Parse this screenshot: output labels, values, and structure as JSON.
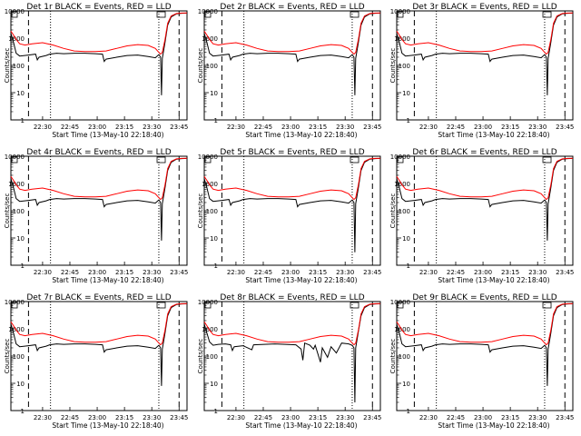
{
  "chart_data": [
    {
      "type": "line",
      "title": "Det 1r BLACK = Events, RED = LLD",
      "xlabel": "Start Time (13-May-10 22:18:40)",
      "ylabel": "Counts/sec",
      "yscale": "log",
      "ylim": [
        1,
        10000
      ],
      "y_ticks": [
        "1",
        "10",
        "100",
        "1000",
        "10000"
      ],
      "x_ticks": [
        "22:30",
        "22:45",
        "23:00",
        "23:15",
        "23:30",
        "23:45"
      ],
      "variant": "a",
      "series": [
        {
          "name": "BLACK",
          "color": "#000000"
        },
        {
          "name": "RED",
          "color": "#ff0000"
        }
      ]
    },
    {
      "type": "line",
      "title": "Det 2r BLACK = Events, RED = LLD",
      "xlabel": "Start Time (13-May-10 22:18:40)",
      "ylabel": "Counts/sec",
      "yscale": "log",
      "ylim": [
        1,
        10000
      ],
      "y_ticks": [
        "1",
        "10",
        "100",
        "1000",
        "10000"
      ],
      "x_ticks": [
        "22:30",
        "22:45",
        "23:00",
        "23:15",
        "23:30",
        "23:45"
      ],
      "variant": "a",
      "series": [
        {
          "name": "BLACK",
          "color": "#000000"
        },
        {
          "name": "RED",
          "color": "#ff0000"
        }
      ]
    },
    {
      "type": "line",
      "title": "Det 3r BLACK = Events, RED = LLD",
      "xlabel": "Start Time (13-May-10 22:18:40)",
      "ylabel": "Counts/sec",
      "yscale": "log",
      "ylim": [
        1,
        10000
      ],
      "y_ticks": [
        "1",
        "10",
        "100",
        "1000",
        "10000"
      ],
      "x_ticks": [
        "22:30",
        "22:45",
        "23:00",
        "23:15",
        "23:30",
        "23:45"
      ],
      "variant": "b",
      "series": [
        {
          "name": "BLACK",
          "color": "#000000"
        },
        {
          "name": "RED",
          "color": "#ff0000"
        }
      ]
    },
    {
      "type": "line",
      "title": "Det 4r BLACK = Events, RED = LLD",
      "xlabel": "Start Time (13-May-10 22:18:40)",
      "ylabel": "Counts/sec",
      "yscale": "log",
      "ylim": [
        1,
        10000
      ],
      "y_ticks": [
        "1",
        "10",
        "100",
        "1000",
        "10000"
      ],
      "x_ticks": [
        "22:30",
        "22:45",
        "23:00",
        "23:15",
        "23:30",
        "23:45"
      ],
      "variant": "a",
      "series": [
        {
          "name": "BLACK",
          "color": "#000000"
        },
        {
          "name": "RED",
          "color": "#ff0000"
        }
      ]
    },
    {
      "type": "line",
      "title": "Det 5r BLACK = Events, RED = LLD",
      "xlabel": "Start Time (13-May-10 22:18:40)",
      "ylabel": "Counts/sec",
      "yscale": "log",
      "ylim": [
        1,
        10000
      ],
      "y_ticks": [
        "1",
        "10",
        "100",
        "1000",
        "10000"
      ],
      "x_ticks": [
        "22:30",
        "22:45",
        "23:00",
        "23:15",
        "23:30",
        "23:45"
      ],
      "variant": "c",
      "series": [
        {
          "name": "BLACK",
          "color": "#000000"
        },
        {
          "name": "RED",
          "color": "#ff0000"
        }
      ]
    },
    {
      "type": "line",
      "title": "Det 6r BLACK = Events, RED = LLD",
      "xlabel": "Start Time (13-May-10 22:18:40)",
      "ylabel": "Counts/sec",
      "yscale": "log",
      "ylim": [
        1,
        10000
      ],
      "y_ticks": [
        "1",
        "10",
        "100",
        "1000",
        "10000"
      ],
      "x_ticks": [
        "22:30",
        "22:45",
        "23:00",
        "23:15",
        "23:30",
        "23:45"
      ],
      "variant": "b",
      "series": [
        {
          "name": "BLACK",
          "color": "#000000"
        },
        {
          "name": "RED",
          "color": "#ff0000"
        }
      ]
    },
    {
      "type": "line",
      "title": "Det 7r BLACK = Events, RED = LLD",
      "xlabel": "Start Time (13-May-10 22:18:40)",
      "ylabel": "Counts/sec",
      "yscale": "log",
      "ylim": [
        1,
        10000
      ],
      "y_ticks": [
        "1",
        "10",
        "100",
        "1000",
        "10000"
      ],
      "x_ticks": [
        "22:30",
        "22:45",
        "23:00",
        "23:15",
        "23:30",
        "23:45"
      ],
      "variant": "a",
      "series": [
        {
          "name": "BLACK",
          "color": "#000000"
        },
        {
          "name": "RED",
          "color": "#ff0000"
        }
      ]
    },
    {
      "type": "line",
      "title": "Det 8r BLACK = Events, RED = LLD",
      "xlabel": "Start Time (13-May-10 22:18:40)",
      "ylabel": "Counts/sec",
      "yscale": "log",
      "ylim": [
        1,
        10000
      ],
      "y_ticks": [
        "1",
        "10",
        "100",
        "1000",
        "10000"
      ],
      "x_ticks": [
        "22:30",
        "22:45",
        "23:00",
        "23:15",
        "23:30",
        "23:45"
      ],
      "variant": "d",
      "series": [
        {
          "name": "BLACK",
          "color": "#000000"
        },
        {
          "name": "RED",
          "color": "#ff0000"
        }
      ]
    },
    {
      "type": "line",
      "title": "Det 9r BLACK = Events, RED = LLD",
      "xlabel": "Start Time (13-May-10 22:18:40)",
      "ylabel": "Counts/sec",
      "yscale": "log",
      "ylim": [
        1,
        10000
      ],
      "y_ticks": [
        "1",
        "10",
        "100",
        "1000",
        "10000"
      ],
      "x_ticks": [
        "22:30",
        "22:45",
        "23:00",
        "23:15",
        "23:30",
        "23:45"
      ],
      "variant": "b",
      "series": [
        {
          "name": "BLACK",
          "color": "#000000"
        },
        {
          "name": "RED",
          "color": "#ff0000"
        }
      ]
    }
  ]
}
